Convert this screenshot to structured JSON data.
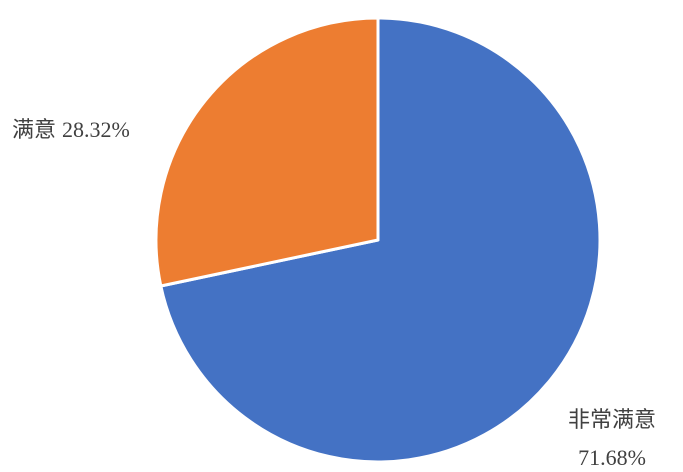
{
  "chart_data": {
    "type": "pie",
    "slices": [
      {
        "label": "非常满意",
        "value": 71.68,
        "value_label": "71.68%",
        "color": "#4472C4"
      },
      {
        "label": "满意",
        "value": 28.32,
        "value_label": "28.32%",
        "color": "#ED7D31"
      }
    ],
    "start_angle": "12 o'clock",
    "direction": "clockwise",
    "legend": "none",
    "slice_border_color": "#FFFFFF"
  }
}
